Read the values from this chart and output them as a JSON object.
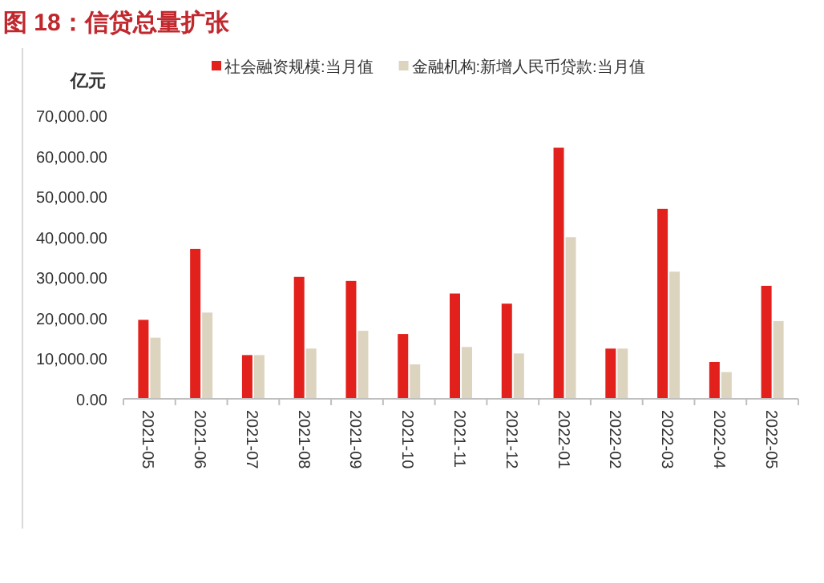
{
  "chart_data": {
    "type": "bar",
    "title": "图 18：信贷总量扩张",
    "ylabel": "亿元",
    "categories": [
      "2021-05",
      "2021-06",
      "2021-07",
      "2021-08",
      "2021-09",
      "2021-10",
      "2021-11",
      "2021-12",
      "2022-01",
      "2022-02",
      "2022-03",
      "2022-04",
      "2022-05"
    ],
    "series": [
      {
        "name": "社会融资规模:当月值",
        "color": "#e3211c",
        "values": [
          19500,
          37000,
          10800,
          30100,
          29100,
          16000,
          26000,
          23500,
          62000,
          12400,
          46900,
          9100,
          27900
        ]
      },
      {
        "name": "金融机构:新增人民币贷款:当月值",
        "color": "#ddd4bf",
        "values": [
          15100,
          21300,
          10800,
          12400,
          16800,
          8500,
          12800,
          11200,
          39900,
          12400,
          31400,
          6600,
          19200
        ]
      }
    ],
    "ylim": [
      0,
      70000
    ],
    "yticks": [
      {
        "value": 0,
        "label": "0.00"
      },
      {
        "value": 10000,
        "label": "10,000.00"
      },
      {
        "value": 20000,
        "label": "20,000.00"
      },
      {
        "value": 30000,
        "label": "30,000.00"
      },
      {
        "value": 40000,
        "label": "40,000.00"
      },
      {
        "value": 50000,
        "label": "50,000.00"
      },
      {
        "value": 60000,
        "label": "60,000.00"
      },
      {
        "value": 70000,
        "label": "70,000.00"
      }
    ],
    "legend": "top",
    "grid": false
  }
}
